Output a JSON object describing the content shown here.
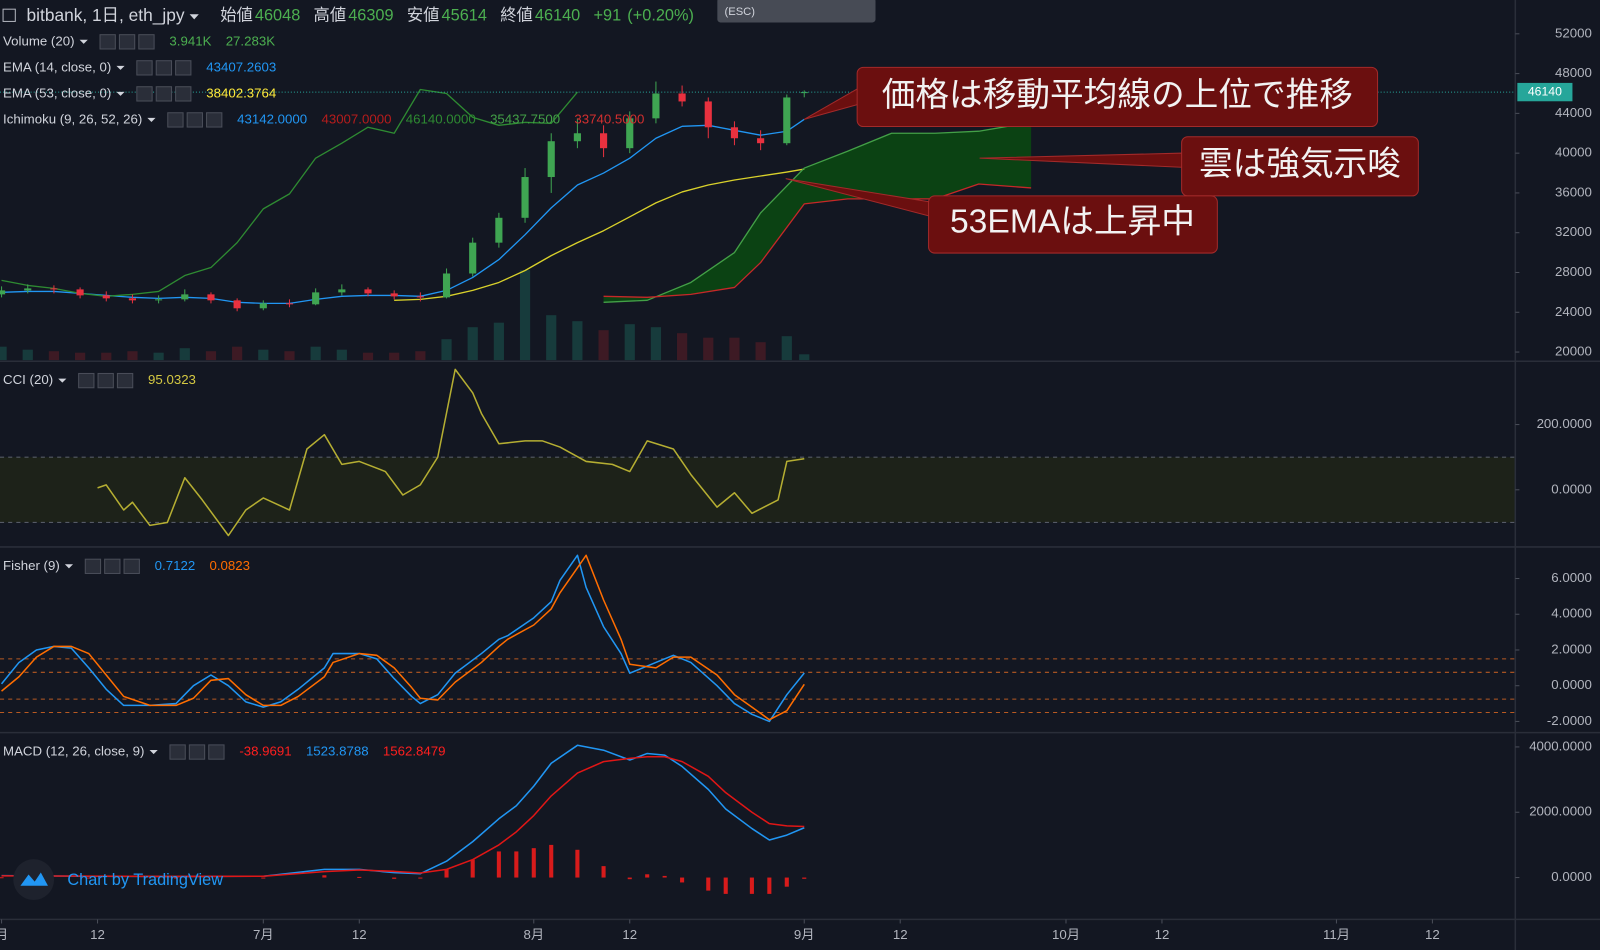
{
  "chart_data": [
    {
      "type": "candlestick",
      "symbol": "bitbank, 1日, eth_jpy",
      "ohlc_labels": [
        "始値",
        "高値",
        "安値",
        "終値"
      ],
      "change": "+91",
      "change_percent": "(+0.20%)",
      "tooltip": "(ESC)",
      "x": [
        -30,
        -27,
        -24,
        -21,
        -18,
        -15,
        -12,
        -9,
        -6,
        -3,
        0,
        3,
        6,
        9,
        12,
        15,
        18,
        21,
        24,
        27,
        30,
        33,
        36,
        39,
        42,
        45,
        48,
        51,
        54,
        57,
        60,
        62
      ],
      "open": [
        25800,
        26200,
        26400,
        26300,
        25700,
        25400,
        25200,
        25300,
        25800,
        25200,
        24400,
        24900,
        24800,
        26000,
        26300,
        25900,
        25600,
        25500,
        27900,
        31000,
        33500,
        37600,
        41200,
        42000,
        40500,
        43500,
        46000,
        45200,
        42600,
        41500,
        41000,
        46048
      ],
      "high": [
        26600,
        26800,
        26700,
        26500,
        26100,
        25800,
        25700,
        26300,
        26000,
        25400,
        25200,
        25300,
        26400,
        26800,
        26500,
        26200,
        26000,
        28400,
        31500,
        34000,
        38500,
        42000,
        43500,
        42800,
        44200,
        47200,
        46800,
        45600,
        43200,
        42300,
        45900,
        46309
      ],
      "low": [
        25500,
        25900,
        25900,
        25400,
        25100,
        24900,
        24900,
        25100,
        24900,
        24100,
        24200,
        24500,
        24700,
        25700,
        25600,
        25300,
        25100,
        25400,
        27600,
        30500,
        33000,
        36000,
        40500,
        39600,
        40000,
        43000,
        44700,
        41500,
        40800,
        40300,
        40800,
        45614
      ],
      "close": [
        26200,
        26400,
        26300,
        25700,
        25400,
        25200,
        25300,
        25800,
        25200,
        24400,
        24900,
        24800,
        26000,
        26300,
        25900,
        25600,
        25500,
        27900,
        31000,
        33500,
        37600,
        41200,
        42000,
        40500,
        43500,
        46000,
        45200,
        42600,
        41500,
        41000,
        45600,
        46140
      ],
      "up_color": "#3fa552",
      "down_color": "#e8313f",
      "volume": {
        "values": [
          9000,
          7000,
          6000,
          5000,
          5000,
          6000,
          5000,
          8000,
          6000,
          9000,
          7000,
          6000,
          9000,
          7000,
          5000,
          5000,
          6000,
          14000,
          22000,
          25000,
          60000,
          30000,
          26000,
          20000,
          24000,
          22000,
          18000,
          15000,
          15000,
          12000,
          16000,
          3941
        ],
        "ylim": [
          0,
          240000
        ],
        "up_color": "#173b3c",
        "down_color": "#3d1a24"
      },
      "series": [
        {
          "color": "#2196f3",
          "x": [
            -30,
            -27,
            -24,
            -21,
            -18,
            -15,
            -12,
            -9,
            -6,
            -3,
            0,
            3,
            6,
            9,
            12,
            15,
            18,
            21,
            24,
            27,
            30,
            33,
            36,
            39,
            42,
            45,
            48,
            51,
            54,
            57,
            60,
            62
          ],
          "values": [
            26000,
            26100,
            26100,
            25900,
            25700,
            25500,
            25400,
            25500,
            25400,
            25000,
            24900,
            24900,
            25300,
            25600,
            25700,
            25700,
            25600,
            26200,
            27500,
            29300,
            31800,
            34500,
            36800,
            38000,
            39500,
            41500,
            42700,
            42800,
            42300,
            41800,
            42200,
            43407.2603
          ]
        },
        {
          "color": "#d9d12b",
          "x": [
            15,
            18,
            21,
            24,
            27,
            30,
            33,
            36,
            39,
            42,
            45,
            48,
            51,
            54,
            57,
            60,
            62
          ],
          "values": [
            25200,
            25300,
            25600,
            26200,
            27000,
            28200,
            29700,
            31000,
            32200,
            33600,
            35000,
            36100,
            36800,
            37300,
            37700,
            38100,
            38402.3764
          ]
        },
        {
          "color": "#2e8b32",
          "x": [
            -30,
            -27,
            -24,
            -21,
            -18,
            -15,
            -12,
            -9,
            -6,
            -3,
            0,
            3,
            6,
            9,
            12,
            15,
            18,
            21,
            24,
            27,
            30,
            33,
            36
          ],
          "values": [
            27200,
            26700,
            26400,
            25900,
            25600,
            25800,
            26100,
            27700,
            28500,
            31000,
            34400,
            35900,
            39500,
            41000,
            42600,
            42000,
            46400,
            46000,
            43600,
            42800,
            43100,
            43000,
            46140
          ]
        },
        {
          "color": "#43a047",
          "fill": "#0b4a10",
          "x": [
            39,
            44,
            49,
            54,
            57,
            62,
            67,
            72,
            77,
            82,
            88
          ],
          "values": [
            25000,
            25200,
            27000,
            30000,
            34000,
            38500,
            40200,
            42000,
            42000,
            42200,
            43100
          ]
        },
        {
          "color": "#c62828",
          "x": [
            39,
            44,
            49,
            54,
            57,
            62,
            67,
            72,
            77,
            82,
            88
          ],
          "values": [
            25600,
            25500,
            25800,
            26500,
            29000,
            34900,
            35400,
            35400,
            35400,
            36900,
            36500
          ]
        }
      ],
      "ylim": [
        19180,
        55400
      ],
      "yticks": [
        20000,
        24000,
        28000,
        32000,
        36000,
        40000,
        44000,
        48000,
        52000
      ],
      "legend": [
        {
          "name": "Volume (20)",
          "values": [
            "3.941K",
            "27.283K"
          ],
          "colors": [
            "#4caf50",
            "#4caf50"
          ]
        },
        {
          "name": "EMA (14, close, 0)",
          "values": [
            "43407.2603"
          ],
          "colors": [
            "#2196f3"
          ]
        },
        {
          "name": "EMA (53, close, 0)",
          "values": [
            "38402.3764"
          ],
          "colors": [
            "#ffeb3b"
          ]
        },
        {
          "name": "Ichimoku (9, 26, 52, 26)",
          "values": [
            "43142.0000",
            "43007.0000",
            "46140.0000",
            "35437.7500",
            "33740.5000"
          ],
          "colors": [
            "#2196f3",
            "#b71c1c",
            "#2e8b32",
            "#43a047",
            "#d32f2f"
          ]
        }
      ],
      "annotations": [
        "価格は移動平均線の上位で推移",
        "雲は強気示唆",
        "53EMAは上昇中"
      ],
      "watermark": "Chart by TradingView"
    },
    {
      "type": "line",
      "x": [
        -19,
        -18,
        -16,
        -15,
        -13,
        -11,
        -9,
        -7,
        -4,
        -2,
        0,
        3,
        5,
        7,
        9,
        11,
        14,
        16,
        18,
        20,
        22,
        24,
        25,
        27,
        30,
        32,
        34,
        37,
        40,
        42,
        44,
        47,
        49,
        52,
        54,
        56,
        59,
        60,
        62
      ],
      "series": [
        {
          "color": "#b5ae32",
          "values": [
            6,
            15,
            -62,
            -38,
            -109,
            -100,
            37,
            -31,
            -140,
            -62,
            -25,
            -62,
            125,
            169,
            78,
            87,
            56,
            -16,
            15,
            100,
            369,
            297,
            234,
            141,
            150,
            150,
            131,
            87,
            78,
            56,
            150,
            125,
            47,
            -53,
            -9,
            -72,
            -31,
            87,
            95.0323
          ]
        }
      ],
      "band": [
        -100,
        100
      ],
      "band_color": "#1d2219",
      "ylim": [
        -172,
        391
      ],
      "yticks": [
        {
          "value": 200,
          "label": "200.0000"
        },
        {
          "value": 0,
          "label": "0.0000"
        }
      ],
      "legend": [
        {
          "name": "CCI (20)",
          "values": [
            "95.0323"
          ],
          "colors": [
            "#d4c842"
          ]
        }
      ]
    },
    {
      "type": "line",
      "x": [
        -30,
        -28,
        -26,
        -24,
        -22,
        -20,
        -18,
        -16,
        -13,
        -10,
        -8,
        -6,
        -4,
        -2,
        0,
        2,
        4,
        7,
        8,
        11,
        13,
        15,
        17,
        18,
        20,
        22,
        25,
        27,
        28,
        31,
        33,
        34,
        36,
        37,
        39,
        41,
        42,
        45,
        47,
        49,
        52,
        54,
        56,
        58,
        60,
        62
      ],
      "series": [
        {
          "color": "#2196f3",
          "values": [
            0.1,
            1.3,
            2.0,
            2.2,
            2.1,
            1.0,
            -0.2,
            -1.1,
            -1.1,
            -1.0,
            0.0,
            0.6,
            0.0,
            -0.9,
            -1.2,
            -0.9,
            -0.2,
            1.0,
            1.8,
            1.8,
            1.5,
            0.4,
            -0.6,
            -1.0,
            -0.5,
            0.7,
            1.8,
            2.6,
            2.8,
            3.8,
            4.7,
            5.9,
            7.3,
            5.5,
            3.3,
            1.8,
            0.7,
            1.3,
            1.7,
            1.3,
            0.0,
            -1.0,
            -1.6,
            -2.0,
            -0.5,
            0.7122
          ]
        },
        {
          "color": "#ff6d00",
          "values": [
            -0.3,
            0.5,
            1.6,
            2.2,
            2.2,
            1.8,
            0.6,
            -0.6,
            -1.1,
            -1.1,
            -0.7,
            0.3,
            0.4,
            -0.5,
            -1.1,
            -1.1,
            -0.6,
            0.5,
            1.3,
            1.8,
            1.7,
            1.0,
            -0.1,
            -0.7,
            -0.8,
            0.2,
            1.3,
            2.2,
            2.6,
            3.4,
            4.3,
            5.2,
            6.6,
            7.3,
            4.8,
            2.6,
            1.2,
            1.0,
            1.6,
            1.6,
            0.6,
            -0.5,
            -1.2,
            -1.9,
            -1.4,
            0.0823
          ]
        }
      ],
      "levels": [
        1.5,
        0.75,
        -0.75,
        -1.5
      ],
      "level_color": "#b85a22",
      "ylim": [
        -2.57,
        7.71
      ],
      "yticks": [
        {
          "value": 6,
          "label": "6.0000"
        },
        {
          "value": 4,
          "label": "4.0000"
        },
        {
          "value": 2,
          "label": "2.0000"
        },
        {
          "value": 0,
          "label": "0.0000"
        },
        {
          "value": -2,
          "label": "-2.0000"
        }
      ],
      "legend": [
        {
          "name": "Fisher (9)",
          "values": [
            "0.7122",
            "0.0823"
          ],
          "colors": [
            "#2196f3",
            "#ff6d00"
          ]
        }
      ]
    },
    {
      "type": "line",
      "x": [
        -30,
        -20,
        -10,
        0,
        7,
        11,
        15,
        18,
        21,
        24,
        27,
        29,
        31,
        33,
        36,
        39,
        42,
        44,
        46,
        48,
        51,
        53,
        56,
        58,
        60,
        62
      ],
      "histogram": {
        "color": "#d81b1b",
        "values": [
          10,
          -5,
          -5,
          0,
          70,
          20,
          -40,
          -20,
          250,
          550,
          800,
          800,
          900,
          1000,
          850,
          350,
          -50,
          100,
          50,
          -150,
          -400,
          -500,
          -500,
          -500,
          -280,
          -38.9691
        ]
      },
      "series": [
        {
          "color": "#2196f3",
          "values": [
            60,
            40,
            30,
            40,
            250,
            250,
            150,
            120,
            500,
            1100,
            1800,
            2200,
            2800,
            3500,
            4050,
            3900,
            3600,
            3800,
            3750,
            3400,
            2700,
            2100,
            1500,
            1150,
            1300,
            1523.8788
          ]
        },
        {
          "color": "#e01616",
          "values": [
            50,
            45,
            35,
            40,
            180,
            230,
            190,
            140,
            250,
            550,
            1000,
            1400,
            1900,
            2500,
            3200,
            3550,
            3650,
            3700,
            3700,
            3550,
            3100,
            2600,
            2000,
            1650,
            1580,
            1562.8479
          ]
        }
      ],
      "ylim": [
        -1250,
        4406
      ],
      "yticks": [
        {
          "value": 4000,
          "label": "4000.0000"
        },
        {
          "value": 2000,
          "label": "2000.0000"
        },
        {
          "value": 0,
          "label": "0.0000"
        }
      ],
      "legend": [
        {
          "name": "MACD (12, 26, close, 9)",
          "values": [
            "-38.9691",
            "1523.8788",
            "1562.8479"
          ],
          "colors": [
            "#ff1f1f",
            "#2196f3",
            "#ff1f1f"
          ]
        }
      ],
      "xlim": [
        -30.18,
        143.5
      ],
      "xticks": [
        {
          "value": -30,
          "label": "月"
        },
        {
          "value": -19,
          "label": "12"
        },
        {
          "value": 0,
          "label": "7月"
        },
        {
          "value": 11,
          "label": "12"
        },
        {
          "value": 31,
          "label": "8月"
        },
        {
          "value": 42,
          "label": "12"
        },
        {
          "value": 62,
          "label": "9月"
        },
        {
          "value": 73,
          "label": "12"
        },
        {
          "value": 92,
          "label": "10月"
        },
        {
          "value": 103,
          "label": "12"
        },
        {
          "value": 123,
          "label": "11月"
        },
        {
          "value": 134,
          "label": "12"
        }
      ]
    }
  ]
}
